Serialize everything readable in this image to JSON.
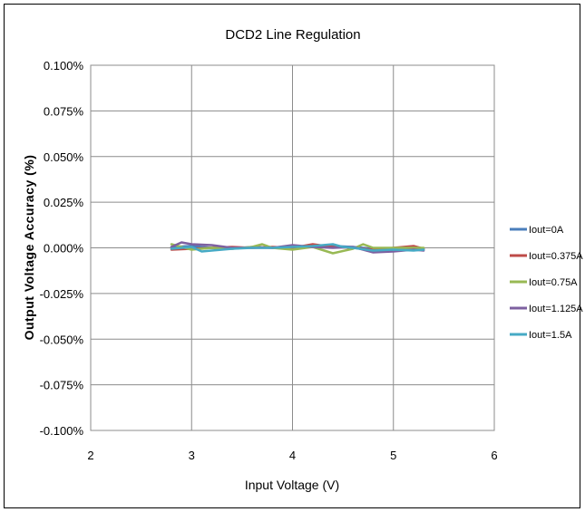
{
  "chart_data": {
    "type": "line",
    "title": "DCD2 Line Regulation",
    "xlabel": "Input Voltage (V)",
    "ylabel": "Output Voltage Accuracy (%)",
    "xlim": [
      2,
      6
    ],
    "ylim": [
      -0.1,
      0.1
    ],
    "x_ticks": [
      2,
      3,
      4,
      5,
      6
    ],
    "x_tick_labels": [
      "2",
      "3",
      "4",
      "5",
      "6"
    ],
    "y_ticks": [
      0.1,
      0.075,
      0.05,
      0.025,
      0.0,
      -0.025,
      -0.05,
      -0.075,
      -0.1
    ],
    "y_tick_labels": [
      "0.100%",
      "0.075%",
      "0.050%",
      "0.025%",
      "0.000%",
      "-0.025%",
      "-0.050%",
      "-0.075%",
      "-0.100%"
    ],
    "grid": true,
    "legend_position": "right",
    "series": [
      {
        "name": "Iout=0A",
        "color": "#4a7ebb",
        "x": [
          2.8,
          3.0,
          3.2,
          3.4,
          3.6,
          3.8,
          4.0,
          4.2,
          4.4,
          4.6,
          4.8,
          5.0,
          5.2,
          5.3
        ],
        "y": [
          0.0005,
          0.001,
          0.0,
          -0.0005,
          0.0005,
          0.0,
          0.0,
          0.0005,
          0.001,
          0.0005,
          -0.0005,
          -0.001,
          -0.0005,
          -0.001
        ]
      },
      {
        "name": "Iout=0.375A",
        "color": "#be4b48",
        "x": [
          2.8,
          3.0,
          3.2,
          3.4,
          3.6,
          3.8,
          4.0,
          4.2,
          4.4,
          4.6,
          4.8,
          5.0,
          5.2,
          5.3
        ],
        "y": [
          -0.001,
          -0.0005,
          0.0,
          0.0005,
          0.0,
          0.0005,
          0.0,
          0.002,
          0.0005,
          0.0,
          -0.001,
          0.0,
          0.001,
          -0.0005
        ]
      },
      {
        "name": "Iout=0.75A",
        "color": "#98b954",
        "x": [
          2.8,
          3.0,
          3.2,
          3.4,
          3.6,
          3.7,
          3.8,
          4.0,
          4.2,
          4.4,
          4.6,
          4.7,
          4.8,
          5.0,
          5.2,
          5.3
        ],
        "y": [
          0.002,
          -0.001,
          0.0,
          -0.0005,
          0.0005,
          0.002,
          0.0,
          -0.001,
          0.0005,
          -0.003,
          -0.0005,
          0.002,
          0.0,
          0.0,
          0.0,
          0.0
        ]
      },
      {
        "name": "Iout=1.125A",
        "color": "#7d60a0",
        "x": [
          2.8,
          2.9,
          3.0,
          3.2,
          3.4,
          3.6,
          3.8,
          4.0,
          4.2,
          4.4,
          4.6,
          4.8,
          5.0,
          5.2,
          5.3
        ],
        "y": [
          0.0005,
          0.003,
          0.002,
          0.0015,
          0.0,
          0.0,
          0.0,
          0.0015,
          0.0005,
          0.0,
          0.0005,
          -0.0025,
          -0.002,
          -0.001,
          -0.0015
        ]
      },
      {
        "name": "Iout=1.5A",
        "color": "#46aac5",
        "x": [
          2.8,
          3.0,
          3.1,
          3.2,
          3.4,
          3.6,
          3.8,
          4.0,
          4.2,
          4.4,
          4.5,
          4.6,
          4.8,
          5.0,
          5.2,
          5.3
        ],
        "y": [
          -0.0005,
          0.0005,
          -0.002,
          -0.0015,
          -0.0005,
          0.0,
          0.0,
          0.0005,
          0.001,
          0.002,
          0.0005,
          0.0,
          -0.0015,
          -0.001,
          -0.0015,
          -0.001
        ]
      }
    ]
  }
}
